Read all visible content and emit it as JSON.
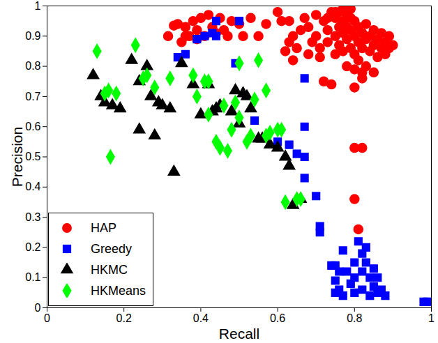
{
  "chart_data": {
    "type": "scatter",
    "xlabel": "Recall",
    "ylabel": "Precision",
    "xlim": [
      0,
      1
    ],
    "xticks": [
      0,
      0.2,
      0.4,
      0.6,
      0.8,
      1
    ],
    "ylim": [
      0,
      1
    ],
    "yticks": [
      0,
      0.1,
      0.2,
      0.3,
      0.4,
      0.5,
      0.6,
      0.7,
      0.8,
      0.9,
      1
    ],
    "legend": "lower left",
    "series": [
      {
        "name": "HAP",
        "color": "#ff0000",
        "marker": "circle",
        "x": [
          0.315,
          0.33,
          0.34,
          0.35,
          0.36,
          0.37,
          0.38,
          0.39,
          0.4,
          0.41,
          0.42,
          0.43,
          0.45,
          0.46,
          0.47,
          0.48,
          0.5,
          0.51,
          0.53,
          0.55,
          0.57,
          0.39,
          0.44,
          0.36,
          0.6,
          0.61,
          0.63,
          0.64,
          0.62,
          0.63,
          0.64,
          0.66,
          0.67,
          0.68,
          0.69,
          0.7,
          0.7,
          0.71,
          0.71,
          0.72,
          0.72,
          0.73,
          0.73,
          0.74,
          0.74,
          0.75,
          0.75,
          0.75,
          0.76,
          0.76,
          0.76,
          0.77,
          0.77,
          0.77,
          0.78,
          0.78,
          0.78,
          0.78,
          0.79,
          0.79,
          0.79,
          0.8,
          0.8,
          0.8,
          0.8,
          0.81,
          0.81,
          0.81,
          0.82,
          0.82,
          0.82,
          0.82,
          0.83,
          0.83,
          0.83,
          0.84,
          0.84,
          0.85,
          0.85,
          0.85,
          0.86,
          0.86,
          0.87,
          0.87,
          0.88,
          0.88,
          0.89,
          0.89,
          0.9,
          0.68,
          0.65,
          0.75,
          0.77,
          0.73,
          0.79,
          0.8,
          0.8,
          0.82,
          0.8,
          0.81
        ],
        "values": [
          0.9,
          0.935,
          0.94,
          0.88,
          0.93,
          0.9,
          0.95,
          0.92,
          0.96,
          0.9,
          0.97,
          0.93,
          0.96,
          0.92,
          0.9,
          0.95,
          0.94,
          0.9,
          0.96,
          0.9,
          0.94,
          0.89,
          0.91,
          0.9,
          0.98,
          0.95,
          0.95,
          0.9,
          0.85,
          0.88,
          0.82,
          0.92,
          0.96,
          0.93,
          0.88,
          0.97,
          0.9,
          0.86,
          0.83,
          0.95,
          0.75,
          0.92,
          0.88,
          0.98,
          0.74,
          0.96,
          0.9,
          0.84,
          0.98,
          0.93,
          0.87,
          0.95,
          0.91,
          0.85,
          0.97,
          0.93,
          0.89,
          0.8,
          0.96,
          0.92,
          0.86,
          0.95,
          0.9,
          0.84,
          0.79,
          0.93,
          0.88,
          0.82,
          0.91,
          0.86,
          0.78,
          0.76,
          0.94,
          0.89,
          0.8,
          0.9,
          0.85,
          0.92,
          0.87,
          0.78,
          0.89,
          0.83,
          0.91,
          0.86,
          0.88,
          0.84,
          0.9,
          0.86,
          0.87,
          0.84,
          0.86,
          0.98,
          0.99,
          0.96,
          0.99,
          0.73,
          0.53,
          0.53,
          0.36,
          0.26
        ]
      },
      {
        "name": "Greedy",
        "color": "#0000ff",
        "marker": "square",
        "x": [
          0.34,
          0.36,
          0.39,
          0.41,
          0.43,
          0.44,
          0.44,
          0.5,
          0.49,
          0.54,
          0.6,
          0.63,
          0.65,
          0.67,
          0.67,
          0.67,
          0.67,
          0.7,
          0.71,
          0.71,
          0.75,
          0.75,
          0.76,
          0.76,
          0.77,
          0.77,
          0.78,
          0.79,
          0.8,
          0.8,
          0.8,
          0.81,
          0.82,
          0.82,
          0.82,
          0.83,
          0.83,
          0.84,
          0.84,
          0.85,
          0.85,
          0.86,
          0.86,
          0.87,
          0.88,
          0.98,
          0.99,
          0.74,
          0.75
        ],
        "values": [
          0.83,
          0.84,
          0.89,
          0.9,
          0.91,
          0.95,
          0.9,
          0.95,
          0.81,
          0.62,
          0.55,
          0.54,
          0.51,
          0.76,
          0.6,
          0.5,
          0.43,
          0.37,
          0.27,
          0.25,
          0.14,
          0.09,
          0.12,
          0.06,
          0.19,
          0.04,
          0.12,
          0.08,
          0.15,
          0.1,
          0.05,
          0.22,
          0.18,
          0.12,
          0.06,
          0.2,
          0.15,
          0.1,
          0.04,
          0.13,
          0.07,
          0.1,
          0.05,
          0.06,
          0.04,
          0.02,
          0.02,
          0.14,
          0.05
        ]
      },
      {
        "name": "HKMC",
        "color": "#000000",
        "marker": "triangle",
        "x": [
          0.12,
          0.14,
          0.15,
          0.17,
          0.19,
          0.22,
          0.24,
          0.24,
          0.26,
          0.27,
          0.28,
          0.29,
          0.3,
          0.32,
          0.33,
          0.35,
          0.38,
          0.4,
          0.42,
          0.43,
          0.44,
          0.45,
          0.48,
          0.49,
          0.5,
          0.51,
          0.52,
          0.53,
          0.55,
          0.56,
          0.58,
          0.6,
          0.62,
          0.63,
          0.64,
          0.66
        ],
        "values": [
          0.77,
          0.7,
          0.68,
          0.67,
          0.66,
          0.82,
          0.59,
          0.75,
          0.8,
          0.7,
          0.57,
          0.68,
          0.67,
          0.66,
          0.45,
          0.81,
          0.74,
          0.64,
          0.74,
          0.65,
          0.66,
          0.67,
          0.65,
          0.72,
          0.61,
          0.71,
          0.7,
          0.66,
          0.56,
          0.56,
          0.54,
          0.53,
          0.5,
          0.47,
          0.34,
          0.36
        ]
      },
      {
        "name": "HKMeans",
        "color": "#00ff00",
        "marker": "diamond",
        "x": [
          0.13,
          0.15,
          0.16,
          0.165,
          0.18,
          0.23,
          0.25,
          0.26,
          0.28,
          0.32,
          0.38,
          0.39,
          0.41,
          0.42,
          0.42,
          0.44,
          0.45,
          0.46,
          0.47,
          0.48,
          0.49,
          0.5,
          0.5,
          0.52,
          0.53,
          0.54,
          0.55,
          0.57,
          0.57,
          0.58,
          0.6,
          0.61,
          0.62,
          0.65,
          0.66
        ],
        "values": [
          0.85,
          0.71,
          0.72,
          0.5,
          0.71,
          0.87,
          0.76,
          0.77,
          0.73,
          0.76,
          0.77,
          0.7,
          0.75,
          0.75,
          0.64,
          0.55,
          0.53,
          0.67,
          0.52,
          0.59,
          0.68,
          0.81,
          0.63,
          0.55,
          0.57,
          0.69,
          0.82,
          0.72,
          0.57,
          0.58,
          0.59,
          0.59,
          0.35,
          0.36,
          0.36
        ]
      }
    ]
  }
}
